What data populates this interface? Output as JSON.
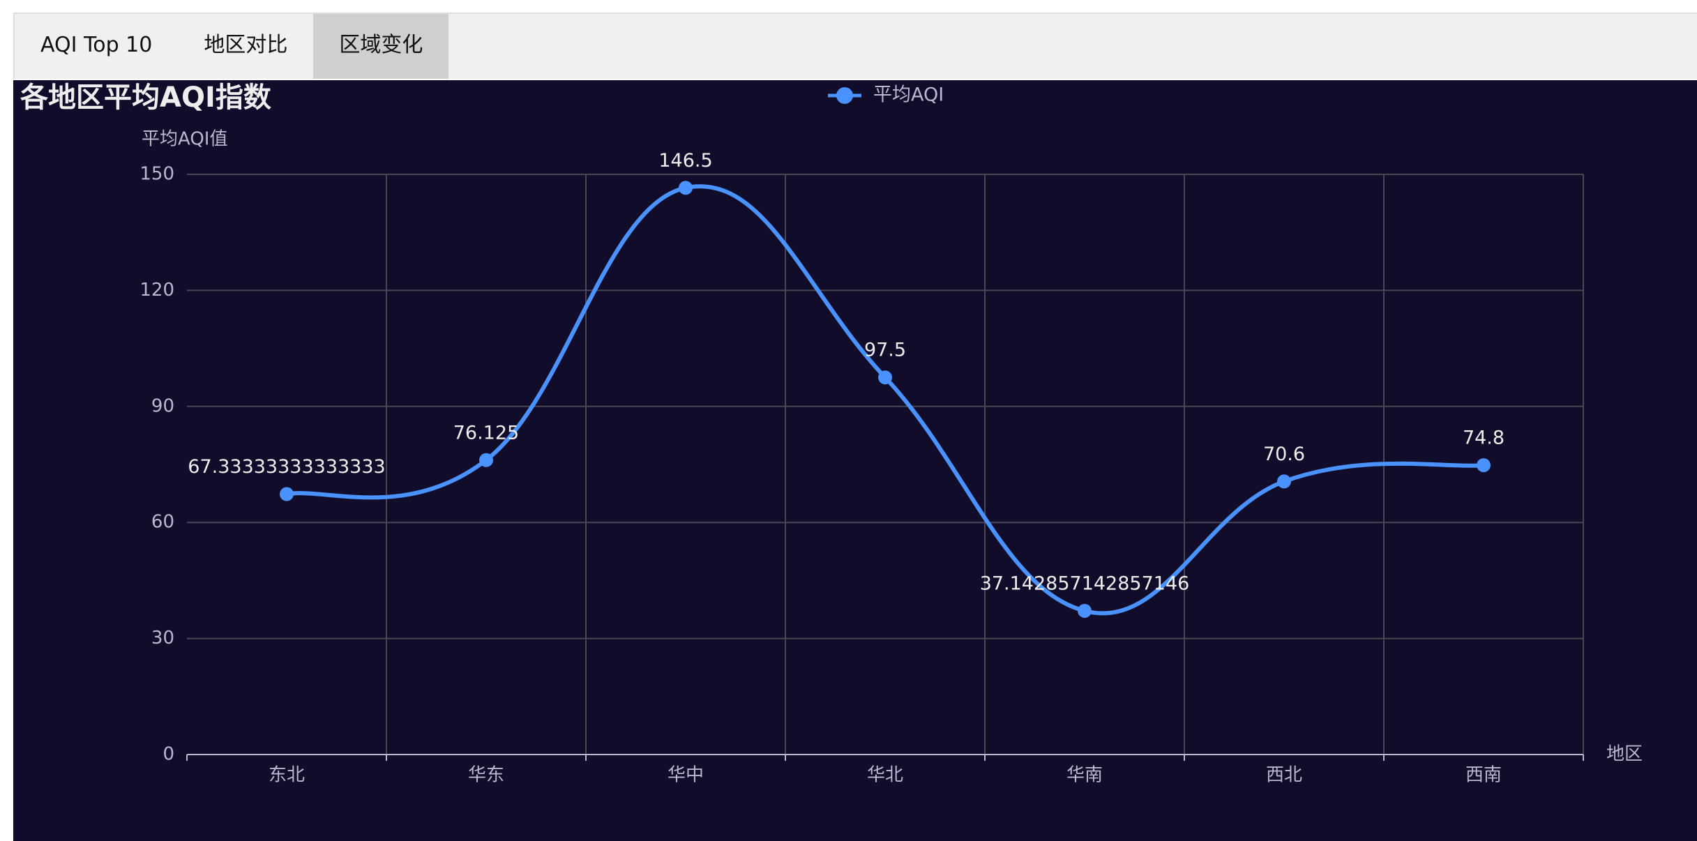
{
  "tabs": [
    "AQI Top 10",
    "地区对比",
    "区域变化"
  ],
  "active_tab": 2,
  "chart_data": {
    "type": "line",
    "title": "各地区平均AQI指数",
    "y_axis_label": "平均AQI值",
    "x_axis_label": "地区",
    "categories": [
      "东北",
      "华东",
      "华中",
      "华北",
      "华南",
      "西北",
      "西南"
    ],
    "series": [
      {
        "name": "平均AQI",
        "color": "#4992ff",
        "values": [
          67.33333333333333,
          76.125,
          146.5,
          97.5,
          37.142857142857146,
          70.6,
          74.8
        ]
      }
    ],
    "ylim": [
      0,
      150
    ],
    "yticks": [
      0,
      30,
      60,
      90,
      120,
      150
    ],
    "grid": true,
    "smooth": true,
    "show_values": true
  }
}
